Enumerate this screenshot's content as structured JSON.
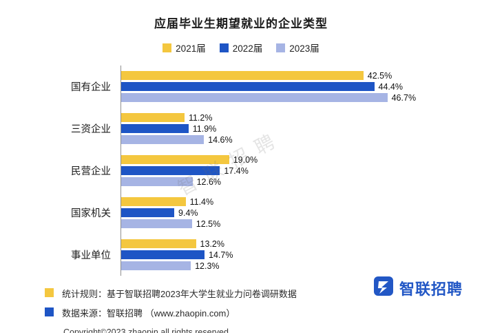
{
  "title": "应届毕业生期望就业的企业类型",
  "legend": [
    {
      "label": "2021届",
      "color": "#F4C73F"
    },
    {
      "label": "2022届",
      "color": "#1E55C5"
    },
    {
      "label": "2023届",
      "color": "#A6B4E4"
    }
  ],
  "chart_data": {
    "type": "bar",
    "orientation": "horizontal",
    "title": "应届毕业生期望就业的企业类型",
    "categories": [
      "国有企业",
      "三资企业",
      "民营企业",
      "国家机关",
      "事业单位"
    ],
    "series": [
      {
        "name": "2021届",
        "color": "#F4C73F",
        "values": [
          42.5,
          11.2,
          19.0,
          11.4,
          13.2
        ]
      },
      {
        "name": "2022届",
        "color": "#1E55C5",
        "values": [
          44.4,
          11.9,
          17.4,
          9.4,
          14.7
        ]
      },
      {
        "name": "2023届",
        "color": "#A6B4E4",
        "values": [
          46.7,
          14.6,
          12.6,
          12.5,
          12.3
        ]
      }
    ],
    "value_suffix": "%",
    "xlim": [
      0,
      50
    ],
    "grid": false,
    "legend_position": "top"
  },
  "watermark": "智联招聘",
  "footer": {
    "notes": [
      {
        "color": "#F4C73F",
        "text": "统计规则：基于智联招聘2023年大学生就业力问卷调研数据"
      },
      {
        "color": "#1E55C5",
        "text": "数据来源：智联招聘 （www.zhaopin.com）"
      }
    ],
    "copyright": "Copyright©2023 zhaopin all rights reserved"
  },
  "logo": {
    "text": "智联招聘",
    "color": "#2257C5"
  }
}
